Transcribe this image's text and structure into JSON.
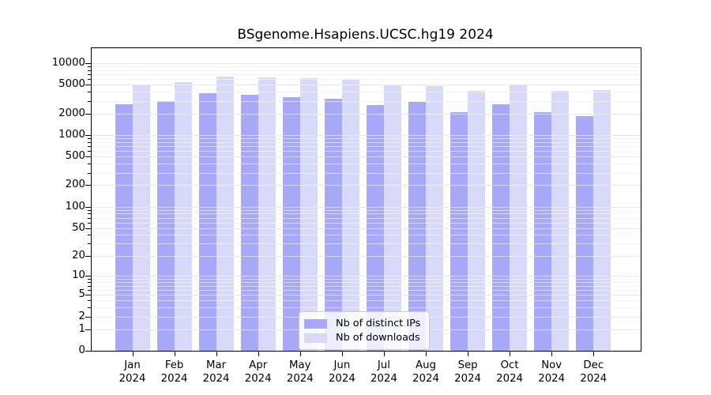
{
  "figure": {
    "title": "BSgenome.Hsapiens.UCSC.hg19 2024"
  },
  "legend": {
    "items": [
      {
        "label": "Nb of distinct IPs",
        "color": "#a8a8f8"
      },
      {
        "label": "Nb of downloads",
        "color": "#d8d8f8"
      }
    ]
  },
  "chart_data": {
    "type": "bar",
    "title": "BSgenome.Hsapiens.UCSC.hg19 2024",
    "scale": "log10(1+y)",
    "categories": [
      "Jan 2024",
      "Feb 2024",
      "Mar 2024",
      "Apr 2024",
      "May 2024",
      "Jun 2024",
      "Jul 2024",
      "Aug 2024",
      "Sep 2024",
      "Oct 2024",
      "Nov 2024",
      "Dec 2024"
    ],
    "month_labels": [
      "Jan",
      "Feb",
      "Mar",
      "Apr",
      "May",
      "Jun",
      "Jul",
      "Aug",
      "Sep",
      "Oct",
      "Nov",
      "Dec"
    ],
    "year_label": "2024",
    "series": [
      {
        "name": "Nb of distinct IPs",
        "color": "#a8a8f8",
        "values": [
          2700,
          3000,
          3800,
          3600,
          3350,
          3200,
          2620,
          2900,
          2100,
          2700,
          2100,
          1820
        ]
      },
      {
        "name": "Nb of downloads",
        "color": "#d8d8f8",
        "values": [
          4950,
          5500,
          6550,
          6300,
          6150,
          6100,
          5100,
          4750,
          4150,
          4900,
          4100,
          4200
        ]
      }
    ],
    "y_ticks": [
      0,
      1,
      2,
      5,
      10,
      20,
      50,
      100,
      200,
      500,
      1000,
      2000,
      5000,
      10000
    ],
    "y_minor_ticks": [
      3,
      4,
      6,
      7,
      8,
      9,
      30,
      40,
      60,
      70,
      80,
      90,
      300,
      400,
      600,
      700,
      800,
      900,
      3000,
      4000,
      6000,
      7000,
      8000,
      9000
    ],
    "ylim": [
      0,
      16000
    ],
    "xlabel": "",
    "ylabel": "",
    "grid": true,
    "legend_position": "lower center"
  }
}
